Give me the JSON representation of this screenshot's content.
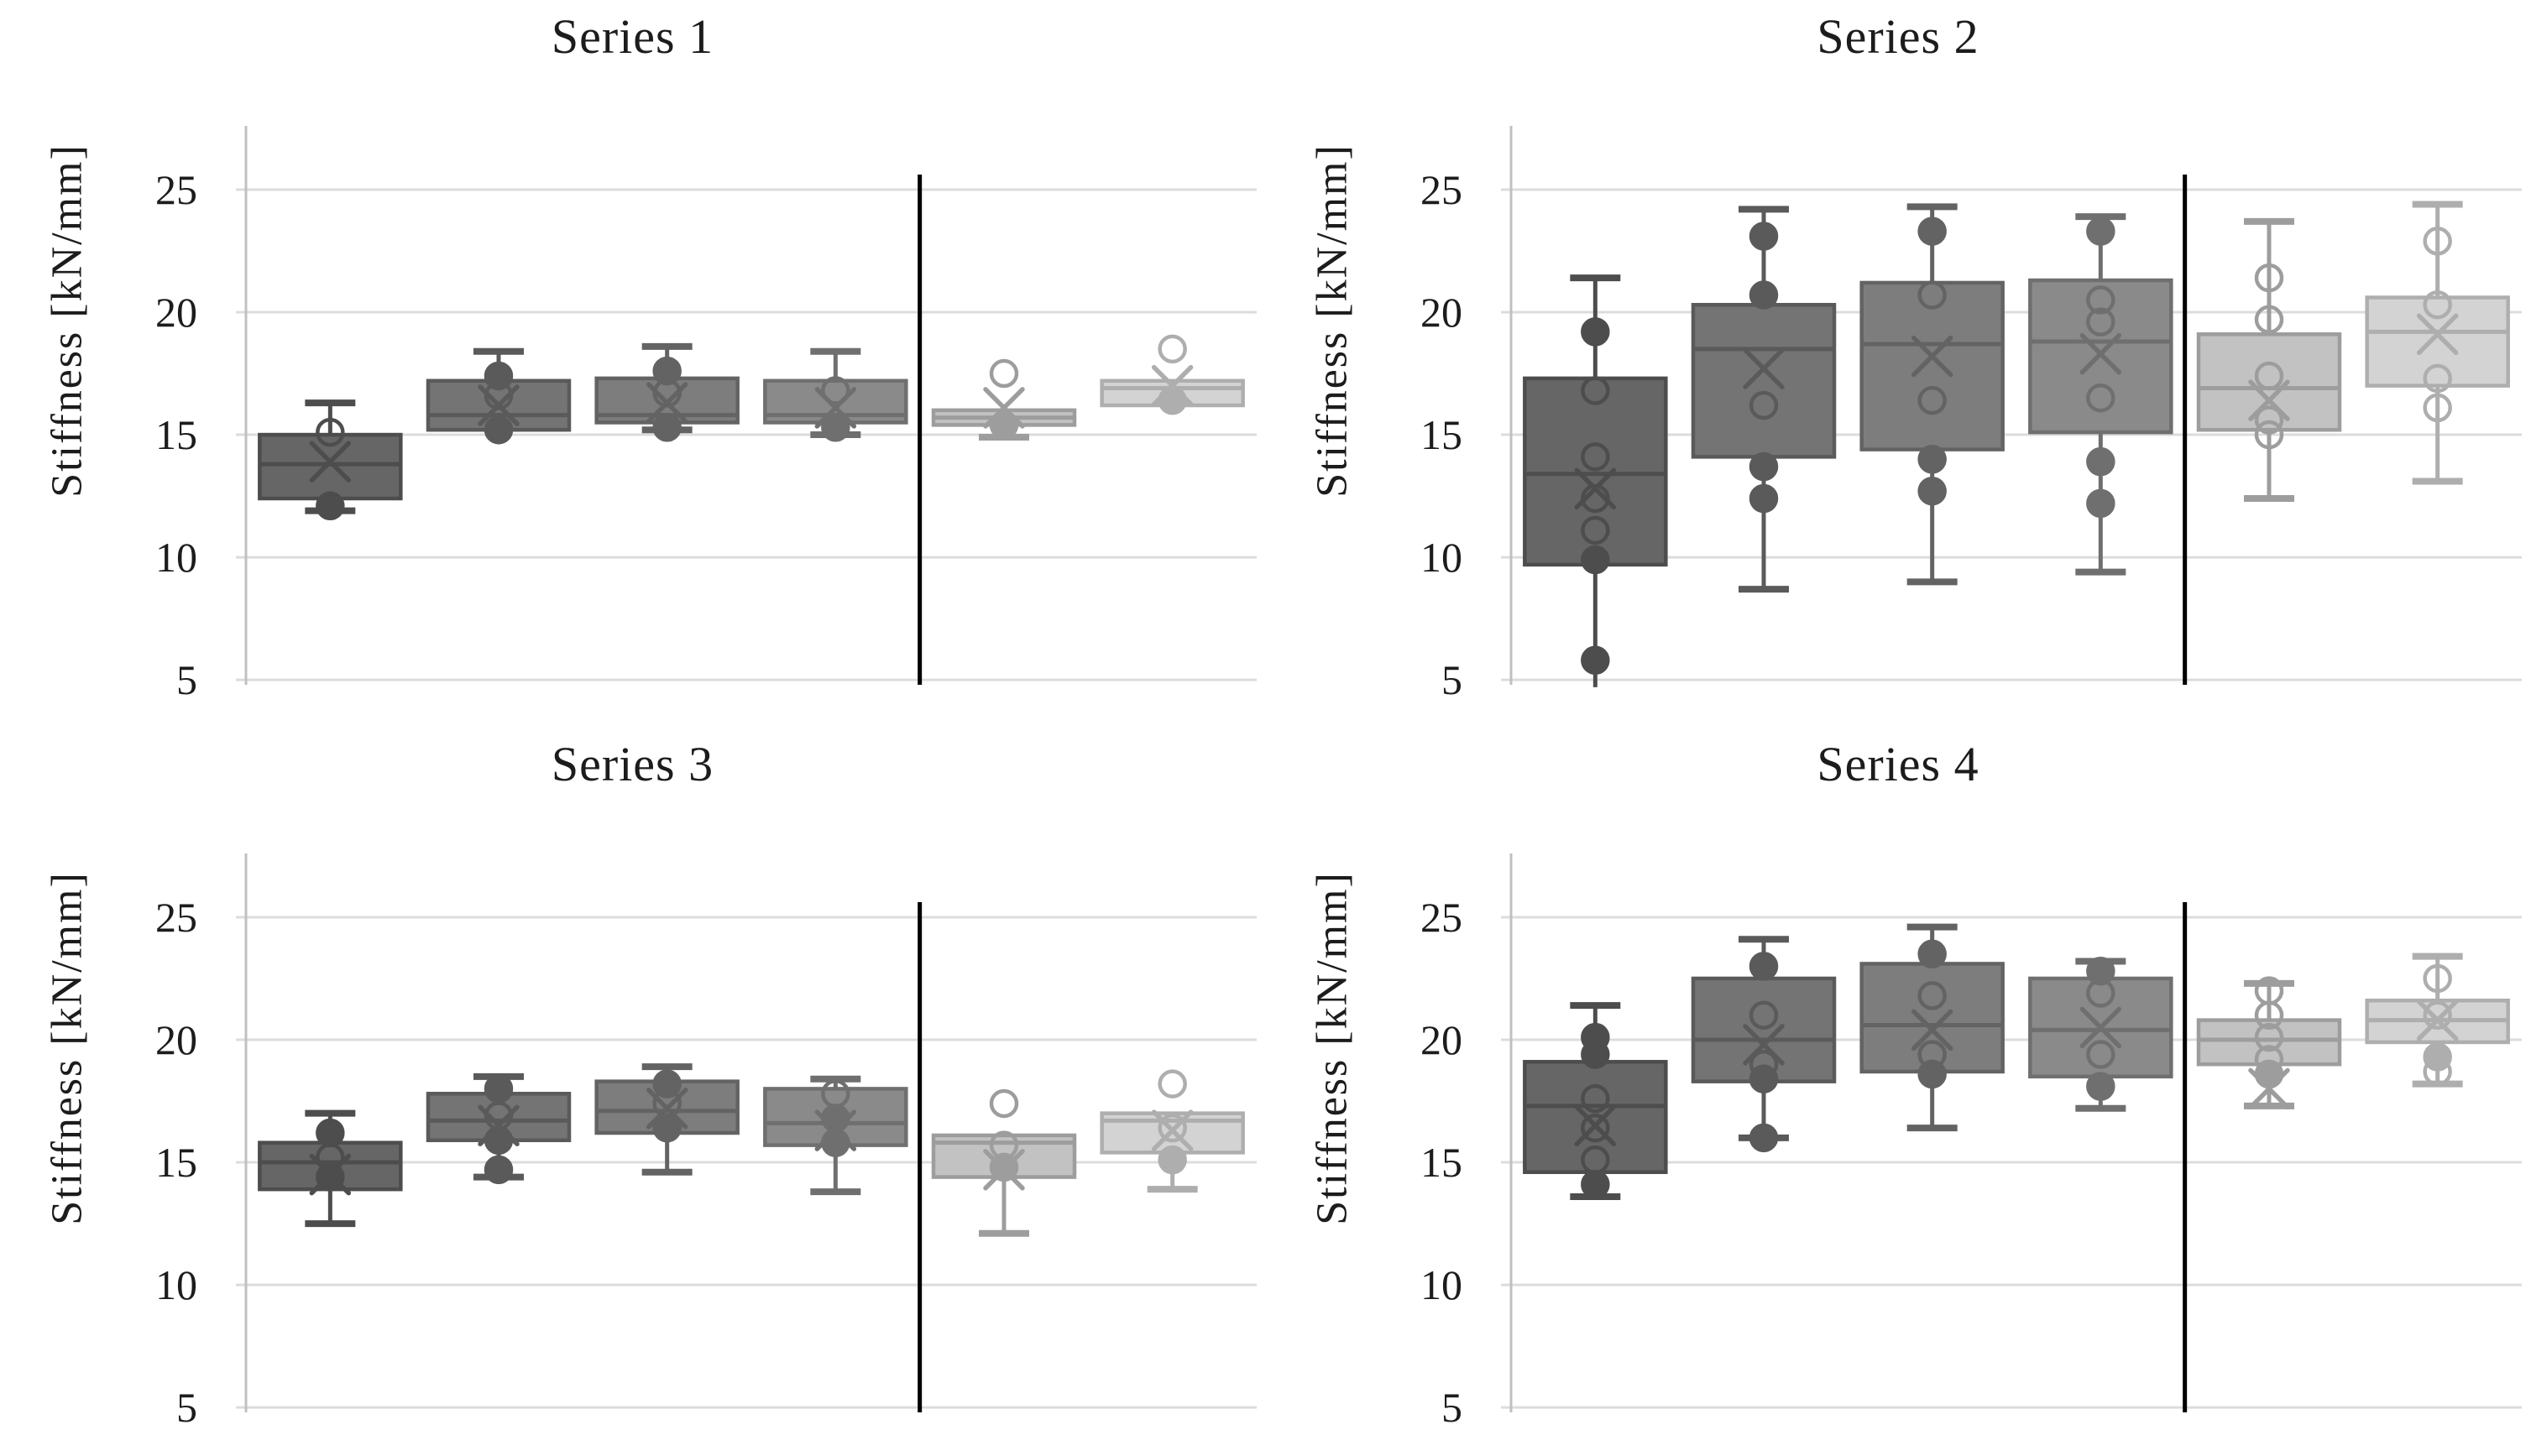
{
  "style": {
    "background": "#ffffff",
    "grid_color": "#dcdcdc",
    "axis_color": "#c0c0c0",
    "divider_color": "#000000",
    "text_color": "#1c1c1c",
    "group_fills": [
      "#666666",
      "#747474",
      "#7d7d7d",
      "#8a8a8a",
      "#c2c2c2",
      "#d3d3d3"
    ],
    "group_strokes": [
      "#4d4d4d",
      "#5a5a5a",
      "#636363",
      "#6f6f6f",
      "#9d9d9d",
      "#aeaeae"
    ]
  },
  "chart_data": [
    {
      "type": "box",
      "title": "Series 1",
      "ylabel": "Stiffness [kN/mm]",
      "yticks": [
        25,
        20,
        15,
        10,
        5
      ],
      "ylim": [
        4.8,
        27.6
      ],
      "grid": true,
      "legend": false,
      "divider_after_group": 4,
      "groups": [
        {
          "q1": 12.4,
          "q3": 15.0,
          "median": 13.8,
          "mean": 13.9,
          "whisker_low": 11.9,
          "whisker_high": 16.3,
          "points": [
            {
              "v": 15.1,
              "f": false
            },
            {
              "v": 12.1,
              "f": true
            }
          ]
        },
        {
          "q1": 15.2,
          "q3": 17.2,
          "median": 15.8,
          "mean": 16.2,
          "whisker_low": 15.2,
          "whisker_high": 18.4,
          "points": [
            {
              "v": 17.4,
              "f": true
            },
            {
              "v": 16.6,
              "f": false
            },
            {
              "v": 15.2,
              "f": true
            }
          ]
        },
        {
          "q1": 15.5,
          "q3": 17.3,
          "median": 15.8,
          "mean": 16.3,
          "whisker_low": 15.2,
          "whisker_high": 18.6,
          "points": [
            {
              "v": 17.6,
              "f": true
            },
            {
              "v": 16.7,
              "f": false
            },
            {
              "v": 15.3,
              "f": true
            }
          ]
        },
        {
          "q1": 15.5,
          "q3": 17.2,
          "median": 15.8,
          "mean": 16.1,
          "whisker_low": 15.0,
          "whisker_high": 18.4,
          "points": [
            {
              "v": 16.8,
              "f": false
            },
            {
              "v": 15.3,
              "f": true
            }
          ]
        },
        {
          "q1": 15.4,
          "q3": 16.0,
          "median": 15.7,
          "mean": 16.1,
          "whisker_low": 14.9,
          "whisker_high": 16.0,
          "points": [
            {
              "v": 17.5,
              "f": false
            },
            {
              "v": 15.4,
              "f": true
            }
          ]
        },
        {
          "q1": 16.2,
          "q3": 17.2,
          "median": 16.9,
          "mean": 17.0,
          "whisker_low": 16.2,
          "whisker_high": 17.2,
          "points": [
            {
              "v": 18.5,
              "f": false
            },
            {
              "v": 16.4,
              "f": true
            }
          ]
        }
      ]
    },
    {
      "type": "box",
      "title": "Series 2",
      "ylabel": "Stiffness [kN/mm]",
      "yticks": [
        25,
        20,
        15,
        10,
        5
      ],
      "ylim": [
        4.8,
        27.6
      ],
      "grid": true,
      "legend": false,
      "divider_after_group": 4,
      "groups": [
        {
          "q1": 9.7,
          "q3": 17.3,
          "median": 13.4,
          "mean": 12.8,
          "whisker_low": 4.7,
          "whisker_high": 21.4,
          "points": [
            {
              "v": 19.2,
              "f": true
            },
            {
              "v": 16.8,
              "f": false
            },
            {
              "v": 14.1,
              "f": false
            },
            {
              "v": 12.4,
              "f": false
            },
            {
              "v": 11.1,
              "f": false
            },
            {
              "v": 9.9,
              "f": true
            },
            {
              "v": 5.8,
              "f": true
            }
          ]
        },
        {
          "q1": 14.1,
          "q3": 20.3,
          "median": 18.5,
          "mean": 17.7,
          "whisker_low": 8.7,
          "whisker_high": 24.2,
          "points": [
            {
              "v": 23.1,
              "f": true
            },
            {
              "v": 20.7,
              "f": true
            },
            {
              "v": 16.2,
              "f": false
            },
            {
              "v": 13.7,
              "f": true
            },
            {
              "v": 12.4,
              "f": true
            }
          ]
        },
        {
          "q1": 14.4,
          "q3": 21.2,
          "median": 18.7,
          "mean": 18.2,
          "whisker_low": 9.0,
          "whisker_high": 24.3,
          "points": [
            {
              "v": 23.3,
              "f": true
            },
            {
              "v": 20.7,
              "f": false
            },
            {
              "v": 16.4,
              "f": false
            },
            {
              "v": 14.0,
              "f": true
            },
            {
              "v": 12.7,
              "f": true
            }
          ]
        },
        {
          "q1": 15.1,
          "q3": 21.3,
          "median": 18.8,
          "mean": 18.3,
          "whisker_low": 9.4,
          "whisker_high": 23.9,
          "points": [
            {
              "v": 23.3,
              "f": true
            },
            {
              "v": 20.5,
              "f": false
            },
            {
              "v": 19.6,
              "f": false
            },
            {
              "v": 16.5,
              "f": false
            },
            {
              "v": 13.9,
              "f": true
            },
            {
              "v": 12.2,
              "f": true
            }
          ]
        },
        {
          "q1": 15.2,
          "q3": 19.1,
          "median": 16.9,
          "mean": 16.4,
          "whisker_low": 12.4,
          "whisker_high": 23.7,
          "points": [
            {
              "v": 21.4,
              "f": false
            },
            {
              "v": 19.7,
              "f": false
            },
            {
              "v": 17.4,
              "f": false
            },
            {
              "v": 15.6,
              "f": false
            },
            {
              "v": 15.0,
              "f": false
            }
          ]
        },
        {
          "q1": 17.0,
          "q3": 20.6,
          "median": 19.2,
          "mean": 19.1,
          "whisker_low": 13.1,
          "whisker_high": 24.4,
          "points": [
            {
              "v": 22.9,
              "f": false
            },
            {
              "v": 20.3,
              "f": false
            },
            {
              "v": 17.3,
              "f": false
            },
            {
              "v": 16.1,
              "f": false
            }
          ]
        }
      ]
    },
    {
      "type": "box",
      "title": "Series 3",
      "ylabel": "Stiffness [kN/mm]",
      "yticks": [
        25,
        20,
        15,
        10,
        5
      ],
      "ylim": [
        4.8,
        27.6
      ],
      "grid": true,
      "legend": false,
      "divider_after_group": 4,
      "groups": [
        {
          "q1": 13.9,
          "q3": 15.8,
          "median": 15.0,
          "mean": 14.5,
          "whisker_low": 12.5,
          "whisker_high": 17.0,
          "points": [
            {
              "v": 16.2,
              "f": true
            },
            {
              "v": 15.2,
              "f": false
            },
            {
              "v": 14.4,
              "f": true
            }
          ]
        },
        {
          "q1": 15.9,
          "q3": 17.8,
          "median": 16.7,
          "mean": 16.5,
          "whisker_low": 14.4,
          "whisker_high": 18.5,
          "points": [
            {
              "v": 18.0,
              "f": true
            },
            {
              "v": 16.9,
              "f": false
            },
            {
              "v": 15.9,
              "f": true
            },
            {
              "v": 14.7,
              "f": true
            }
          ]
        },
        {
          "q1": 16.2,
          "q3": 18.3,
          "median": 17.1,
          "mean": 17.2,
          "whisker_low": 14.6,
          "whisker_high": 18.9,
          "points": [
            {
              "v": 18.2,
              "f": true
            },
            {
              "v": 17.4,
              "f": false
            },
            {
              "v": 16.4,
              "f": true
            }
          ]
        },
        {
          "q1": 15.7,
          "q3": 18.0,
          "median": 16.6,
          "mean": 16.3,
          "whisker_low": 13.8,
          "whisker_high": 18.4,
          "points": [
            {
              "v": 17.8,
              "f": false
            },
            {
              "v": 16.8,
              "f": true
            },
            {
              "v": 15.8,
              "f": true
            }
          ]
        },
        {
          "q1": 14.4,
          "q3": 16.1,
          "median": 15.8,
          "mean": 14.7,
          "whisker_low": 12.1,
          "whisker_high": 16.1,
          "points": [
            {
              "v": 17.4,
              "f": false
            },
            {
              "v": 15.7,
              "f": false
            },
            {
              "v": 14.8,
              "f": true
            }
          ]
        },
        {
          "q1": 15.4,
          "q3": 17.0,
          "median": 16.7,
          "mean": 16.3,
          "whisker_low": 13.9,
          "whisker_high": 17.0,
          "points": [
            {
              "v": 18.2,
              "f": false
            },
            {
              "v": 16.4,
              "f": false
            },
            {
              "v": 15.1,
              "f": true
            }
          ]
        }
      ]
    },
    {
      "type": "box",
      "title": "Series 4",
      "ylabel": "Stiffness [kN/mm]",
      "yticks": [
        25,
        20,
        15,
        10,
        5
      ],
      "ylim": [
        4.8,
        27.6
      ],
      "grid": true,
      "legend": false,
      "divider_after_group": 4,
      "groups": [
        {
          "q1": 14.6,
          "q3": 19.1,
          "median": 17.3,
          "mean": 16.5,
          "whisker_low": 13.6,
          "whisker_high": 21.4,
          "points": [
            {
              "v": 20.1,
              "f": true
            },
            {
              "v": 19.4,
              "f": true
            },
            {
              "v": 17.6,
              "f": false
            },
            {
              "v": 16.4,
              "f": false
            },
            {
              "v": 15.1,
              "f": false
            },
            {
              "v": 14.1,
              "f": true
            }
          ]
        },
        {
          "q1": 18.3,
          "q3": 22.5,
          "median": 20.0,
          "mean": 19.8,
          "whisker_low": 16.0,
          "whisker_high": 24.1,
          "points": [
            {
              "v": 23.0,
              "f": true
            },
            {
              "v": 21.0,
              "f": false
            },
            {
              "v": 19.0,
              "f": false
            },
            {
              "v": 18.4,
              "f": true
            },
            {
              "v": 16.0,
              "f": true
            }
          ]
        },
        {
          "q1": 18.7,
          "q3": 23.1,
          "median": 20.6,
          "mean": 20.4,
          "whisker_low": 16.4,
          "whisker_high": 24.6,
          "points": [
            {
              "v": 23.5,
              "f": true
            },
            {
              "v": 21.8,
              "f": false
            },
            {
              "v": 19.4,
              "f": false
            },
            {
              "v": 18.6,
              "f": true
            }
          ]
        },
        {
          "q1": 18.5,
          "q3": 22.5,
          "median": 20.4,
          "mean": 20.5,
          "whisker_low": 17.2,
          "whisker_high": 23.2,
          "points": [
            {
              "v": 22.8,
              "f": true
            },
            {
              "v": 21.9,
              "f": false
            },
            {
              "v": 19.4,
              "f": false
            },
            {
              "v": 18.1,
              "f": true
            }
          ]
        },
        {
          "q1": 19.0,
          "q3": 20.8,
          "median": 20.0,
          "mean": 18.0,
          "whisker_low": 17.3,
          "whisker_high": 22.3,
          "points": [
            {
              "v": 22.0,
              "f": false
            },
            {
              "v": 21.0,
              "f": false
            },
            {
              "v": 20.1,
              "f": false
            },
            {
              "v": 19.2,
              "f": false
            },
            {
              "v": 18.6,
              "f": true
            }
          ]
        },
        {
          "q1": 19.9,
          "q3": 21.6,
          "median": 20.8,
          "mean": 20.8,
          "whisker_low": 18.2,
          "whisker_high": 23.4,
          "points": [
            {
              "v": 22.5,
              "f": false
            },
            {
              "v": 21.0,
              "f": false
            },
            {
              "v": 19.3,
              "f": true
            },
            {
              "v": 18.7,
              "f": false
            }
          ]
        }
      ]
    }
  ]
}
